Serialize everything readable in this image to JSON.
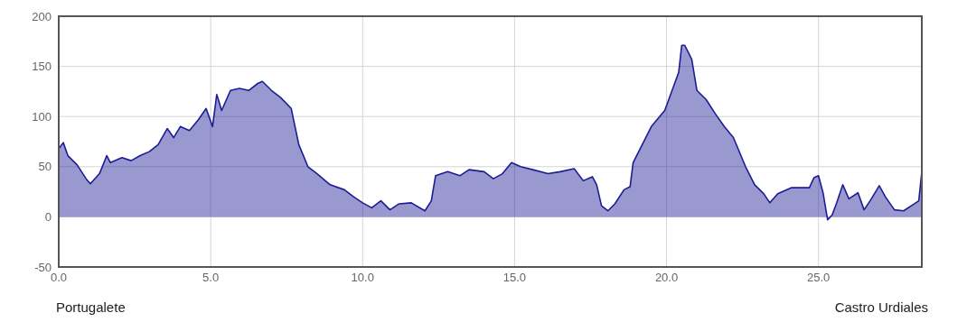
{
  "chart_data": {
    "type": "area",
    "x": [
      0,
      0.15,
      0.3,
      0.6,
      0.9,
      1.04,
      1.34,
      1.58,
      1.7,
      2.08,
      2.38,
      2.68,
      2.98,
      3.27,
      3.57,
      3.78,
      4.0,
      4.3,
      4.6,
      4.85,
      5.06,
      5.2,
      5.36,
      5.65,
      5.95,
      6.25,
      6.55,
      6.7,
      7.0,
      7.3,
      7.65,
      7.9,
      8.2,
      8.5,
      8.93,
      9.4,
      9.7,
      10.0,
      10.3,
      10.6,
      10.9,
      11.2,
      11.6,
      12.05,
      12.26,
      12.4,
      12.8,
      13.2,
      13.5,
      14.0,
      14.3,
      14.6,
      14.9,
      15.2,
      15.6,
      16.1,
      16.5,
      16.96,
      17.26,
      17.56,
      17.7,
      17.86,
      18.07,
      18.3,
      18.6,
      18.8,
      18.9,
      19.2,
      19.5,
      19.94,
      20.4,
      20.5,
      20.6,
      20.83,
      21.0,
      21.3,
      21.6,
      21.9,
      22.2,
      22.6,
      22.9,
      23.2,
      23.4,
      23.66,
      24.1,
      24.7,
      24.85,
      25.0,
      25.15,
      25.3,
      25.45,
      25.6,
      25.8,
      26.0,
      26.3,
      26.5,
      26.7,
      27.0,
      27.2,
      27.5,
      27.8,
      28.1,
      28.3,
      28.4
    ],
    "series": [
      {
        "color": "#1c1c96",
        "values": [
          68,
          74,
          61,
          52,
          38,
          33,
          43,
          61,
          54,
          59,
          56,
          61,
          65,
          72,
          88,
          79,
          90,
          86,
          97,
          108,
          90,
          122,
          106,
          126,
          128,
          126,
          133,
          135,
          126,
          119,
          108,
          72,
          50,
          43,
          32,
          27,
          20,
          14,
          9,
          16,
          7,
          13,
          14,
          6,
          16,
          41,
          45,
          41,
          47,
          45,
          38,
          43,
          54,
          50,
          47,
          43,
          45,
          48,
          36,
          40,
          32,
          11,
          6,
          13,
          27,
          30,
          54,
          72,
          90,
          106,
          144,
          171,
          171,
          157,
          126,
          117,
          103,
          90,
          79,
          50,
          32,
          23,
          14,
          23,
          29,
          29,
          39,
          41,
          24,
          -3,
          2,
          14,
          32,
          18,
          24,
          7,
          16,
          31,
          20,
          7,
          6,
          12,
          16,
          45
        ]
      }
    ],
    "xlim": [
      0,
      28.4
    ],
    "ylim": [
      -50,
      200
    ],
    "xticks": [
      {
        "value": 0,
        "label": "0.0"
      },
      {
        "value": 5,
        "label": "5.0"
      },
      {
        "value": 10,
        "label": "10.0"
      },
      {
        "value": 15,
        "label": "15.0"
      },
      {
        "value": 20,
        "label": "20.0"
      },
      {
        "value": 25,
        "label": "25.0"
      }
    ],
    "yticks": [
      -50,
      0,
      50,
      100,
      150,
      200
    ],
    "grid": true,
    "annotations": [
      "Portugalete",
      "Castro Urdiales"
    ]
  }
}
